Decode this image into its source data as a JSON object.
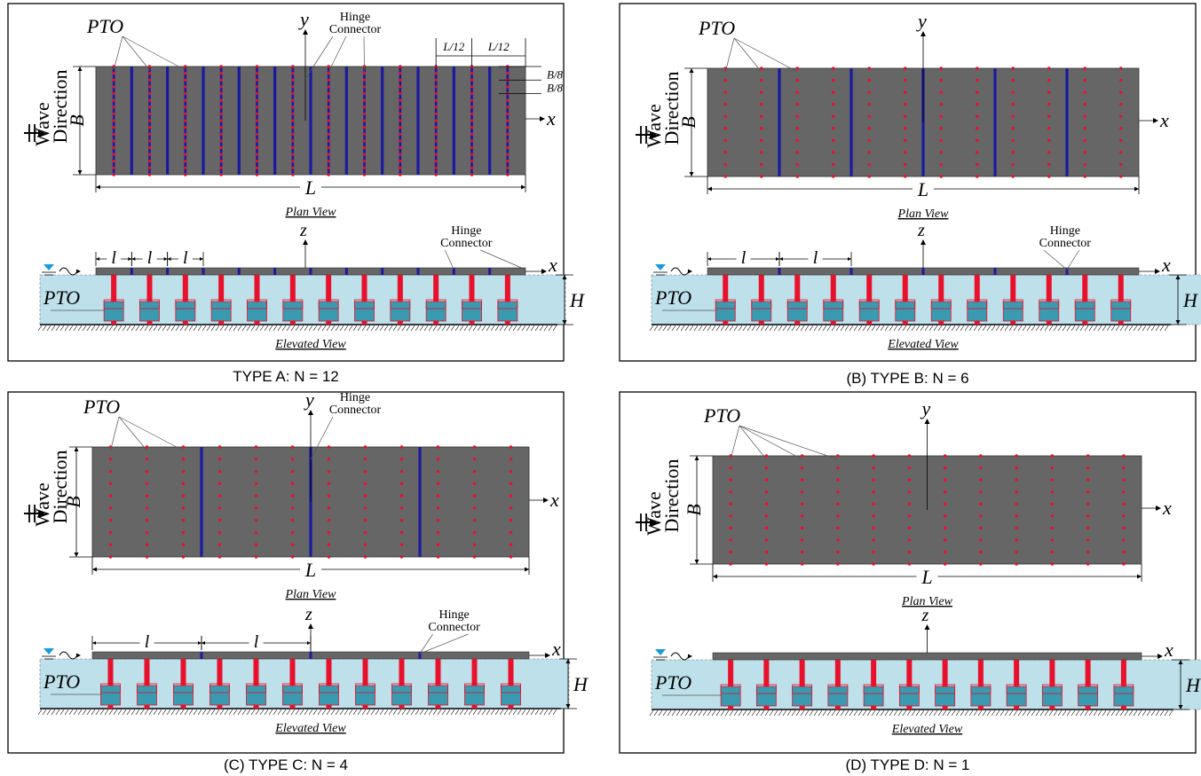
{
  "labels": {
    "pto": "PTO",
    "hinge_line1": "Hinge",
    "hinge_line2": "Connector",
    "wave_line1": "Wave",
    "wave_line2": "Direction",
    "plan_view": "Plan View",
    "elevated_view": "Elevated View",
    "y_axis": "y",
    "x_axis": "x",
    "z_axis": "z",
    "b_dim": "B",
    "l_dim": "L",
    "h_dim": "H",
    "small_l": "l",
    "l12": "L/12",
    "b8": "B/8"
  },
  "colors": {
    "plate": "#666666",
    "pto_dot": "#e8102a",
    "hinge": "#1a1aa0",
    "water": "#bde0ea",
    "pto_box": "#3a9ab0",
    "pto_rod": "#e8102a",
    "water_symbol": "#1a9ad7"
  },
  "panels": [
    {
      "id": "A",
      "title": "TYPE A:  N = 12",
      "modules": 12,
      "pto_columns": 12,
      "pto_rows": 2,
      "hinge_count": 11
    },
    {
      "id": "B",
      "title": "(B) TYPE B:  N = 6",
      "modules": 6,
      "pto_columns": 12,
      "pto_rows": 8,
      "hinge_count": 5
    },
    {
      "id": "C",
      "title": "(C) TYPE C:  N = 4",
      "modules": 4,
      "pto_columns": 12,
      "pto_rows": 8,
      "hinge_count": 3
    },
    {
      "id": "D",
      "title": "(D) TYPE D:  N = 1",
      "modules": 1,
      "pto_columns": 12,
      "pto_rows": 8,
      "hinge_count": 0
    }
  ]
}
